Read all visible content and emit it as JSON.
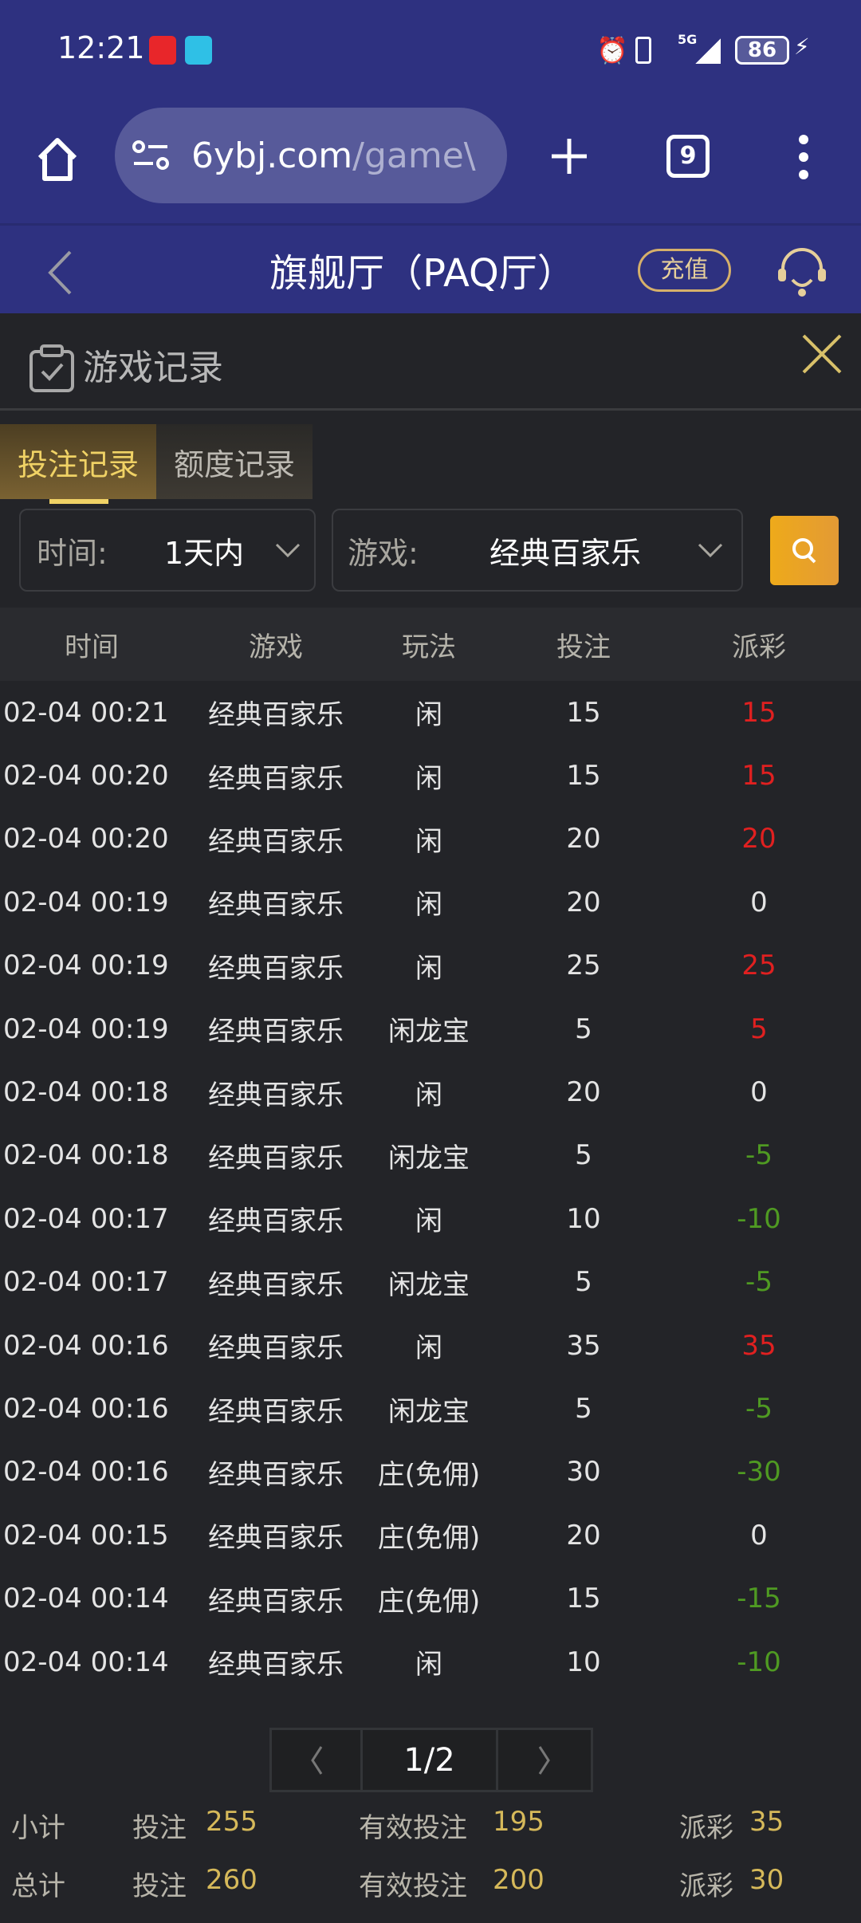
{
  "status_bar": {
    "time": "12:21",
    "battery": "86",
    "network": "5G"
  },
  "browser": {
    "url_domain": "6ybj.com",
    "url_path": "/game\\",
    "tab_count": "9"
  },
  "header": {
    "title": "旗舰厅（PAQ厅）",
    "recharge": "充值"
  },
  "dialog": {
    "title": "游戏记录"
  },
  "tabs": [
    {
      "label": "投注记录",
      "active": true
    },
    {
      "label": "额度记录",
      "active": false
    }
  ],
  "filters": {
    "time_label": "时间:",
    "time_value": "1天内",
    "game_label": "游戏:",
    "game_value": "经典百家乐"
  },
  "table": {
    "headers": [
      "时间",
      "游戏",
      "玩法",
      "投注",
      "派彩"
    ],
    "rows": [
      [
        "02-04 00:21",
        "经典百家乐",
        "闲",
        "15",
        "15"
      ],
      [
        "02-04 00:20",
        "经典百家乐",
        "闲",
        "15",
        "15"
      ],
      [
        "02-04 00:20",
        "经典百家乐",
        "闲",
        "20",
        "20"
      ],
      [
        "02-04 00:19",
        "经典百家乐",
        "闲",
        "20",
        "0"
      ],
      [
        "02-04 00:19",
        "经典百家乐",
        "闲",
        "25",
        "25"
      ],
      [
        "02-04 00:19",
        "经典百家乐",
        "闲龙宝",
        "5",
        "5"
      ],
      [
        "02-04 00:18",
        "经典百家乐",
        "闲",
        "20",
        "0"
      ],
      [
        "02-04 00:18",
        "经典百家乐",
        "闲龙宝",
        "5",
        "-5"
      ],
      [
        "02-04 00:17",
        "经典百家乐",
        "闲",
        "10",
        "-10"
      ],
      [
        "02-04 00:17",
        "经典百家乐",
        "闲龙宝",
        "5",
        "-5"
      ],
      [
        "02-04 00:16",
        "经典百家乐",
        "闲",
        "35",
        "35"
      ],
      [
        "02-04 00:16",
        "经典百家乐",
        "闲龙宝",
        "5",
        "-5"
      ],
      [
        "02-04 00:16",
        "经典百家乐",
        "庄(免佣)",
        "30",
        "-30"
      ],
      [
        "02-04 00:15",
        "经典百家乐",
        "庄(免佣)",
        "20",
        "0"
      ],
      [
        "02-04 00:14",
        "经典百家乐",
        "庄(免佣)",
        "15",
        "-15"
      ],
      [
        "02-04 00:14",
        "经典百家乐",
        "闲",
        "10",
        "-10"
      ]
    ]
  },
  "pagination": {
    "page": "1/2"
  },
  "subtotal": {
    "label": "小计",
    "bet_label": "投注",
    "bet": "255",
    "valid_label": "有效投注",
    "valid": "195",
    "payout_label": "派彩",
    "payout": "35"
  },
  "total": {
    "label": "总计",
    "bet_label": "投注",
    "bet": "260",
    "valid_label": "有效投注",
    "valid": "200",
    "payout_label": "派彩",
    "payout": "30"
  },
  "colors": {
    "brand": "#2e3180",
    "accent": "#e9a820",
    "win": "#e02020",
    "loss": "#4f9a22",
    "gold": "#d6b95a"
  }
}
